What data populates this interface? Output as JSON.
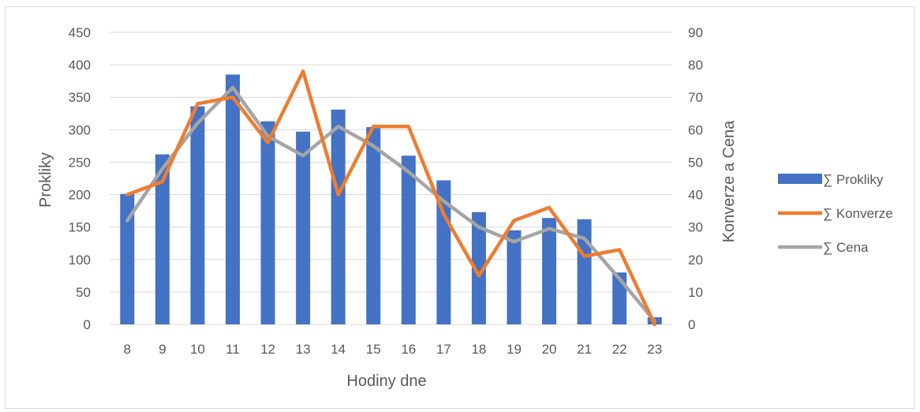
{
  "chart_data": {
    "type": "bar+line",
    "title": "",
    "xlabel": "Hodiny dne",
    "ylabel_left": "Prokliky",
    "ylabel_right": "Konverze a Cena",
    "categories": [
      "8",
      "9",
      "10",
      "11",
      "12",
      "13",
      "14",
      "15",
      "16",
      "17",
      "18",
      "19",
      "20",
      "21",
      "22",
      "23"
    ],
    "ylim_left": [
      0,
      450
    ],
    "ylim_right": [
      0,
      90
    ],
    "yticks_left": [
      "0",
      "50",
      "100",
      "150",
      "200",
      "250",
      "300",
      "350",
      "400",
      "450"
    ],
    "yticks_right": [
      "0",
      "10",
      "20",
      "30",
      "40",
      "50",
      "60",
      "70",
      "80",
      "90"
    ],
    "grid": true,
    "legend_position": "right",
    "series": [
      {
        "name": "∑ Prokliky",
        "type": "bar",
        "axis": "left",
        "color": "#4472c4",
        "values": [
          201,
          262,
          336,
          385,
          313,
          297,
          331,
          304,
          260,
          222,
          173,
          145,
          164,
          162,
          80,
          11
        ]
      },
      {
        "name": "∑ Konverze",
        "type": "line",
        "axis": "right",
        "color": "#ed7d31",
        "values": [
          40,
          44,
          68,
          70,
          56,
          78,
          40,
          61,
          61,
          34,
          15,
          32,
          36,
          21,
          23,
          0
        ]
      },
      {
        "name": "∑ Cena",
        "type": "line",
        "axis": "right",
        "color": "#a5a5a5",
        "values": [
          32,
          48,
          62,
          73,
          58,
          52,
          61,
          55,
          47,
          38,
          30,
          25.5,
          29.5,
          26.5,
          14,
          1
        ]
      }
    ]
  }
}
